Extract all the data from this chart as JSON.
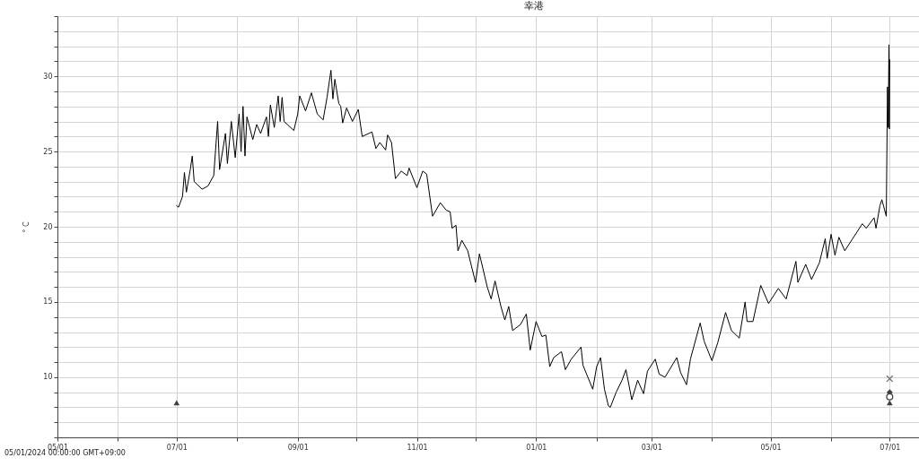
{
  "chart_data": {
    "type": "line",
    "title": "幸港",
    "ylabel": "° C",
    "annotations": [
      "05/01/2024 00:00:00 GMT+09:00"
    ],
    "xlim": [
      "2024-05-01",
      "2025-07-16"
    ],
    "ylim": [
      6,
      34
    ],
    "xticks": [
      {
        "value": "2024-05-01",
        "label": "05/01"
      },
      {
        "value": "2024-06-01",
        "label": null
      },
      {
        "value": "2024-07-01",
        "label": "07/01"
      },
      {
        "value": "2024-08-01",
        "label": null
      },
      {
        "value": "2024-09-01",
        "label": "09/01"
      },
      {
        "value": "2024-10-01",
        "label": null
      },
      {
        "value": "2024-11-01",
        "label": "11/01"
      },
      {
        "value": "2024-12-01",
        "label": null
      },
      {
        "value": "2025-01-01",
        "label": "01/01"
      },
      {
        "value": "2025-02-01",
        "label": null
      },
      {
        "value": "2025-03-01",
        "label": "03/01"
      },
      {
        "value": "2025-04-01",
        "label": null
      },
      {
        "value": "2025-05-01",
        "label": "05/01"
      },
      {
        "value": "2025-06-01",
        "label": null
      },
      {
        "value": "2025-07-01",
        "label": "07/01"
      }
    ],
    "yticks": [
      {
        "value": 6,
        "label": null
      },
      {
        "value": 7,
        "label": null
      },
      {
        "value": 8,
        "label": null
      },
      {
        "value": 9,
        "label": null
      },
      10,
      {
        "value": 11,
        "label": null
      },
      {
        "value": 12,
        "label": null
      },
      {
        "value": 13,
        "label": null
      },
      {
        "value": 14,
        "label": null
      },
      15,
      {
        "value": 16,
        "label": null
      },
      {
        "value": 17,
        "label": null
      },
      {
        "value": 18,
        "label": null
      },
      {
        "value": 19,
        "label": null
      },
      20,
      {
        "value": 21,
        "label": null
      },
      {
        "value": 22,
        "label": null
      },
      {
        "value": 23,
        "label": null
      },
      {
        "value": 24,
        "label": null
      },
      25,
      {
        "value": 26,
        "label": null
      },
      {
        "value": 27,
        "label": null
      },
      {
        "value": 28,
        "label": null
      },
      {
        "value": 29,
        "label": null
      },
      30,
      {
        "value": 31,
        "label": null
      },
      {
        "value": 32,
        "label": null
      },
      {
        "value": 33,
        "label": null
      },
      {
        "value": 34,
        "label": null
      }
    ],
    "grid": true,
    "series": [
      {
        "color": "#000000",
        "x": [
          "2024-07-01",
          "2024-07-02",
          "2024-07-04",
          "2024-07-05",
          "2024-07-06",
          "2024-07-08",
          "2024-07-09",
          "2024-07-10",
          "2024-07-14",
          "2024-07-17",
          "2024-07-20",
          "2024-07-22",
          "2024-07-23",
          "2024-07-26",
          "2024-07-27",
          "2024-07-29",
          "2024-07-31",
          "2024-08-02",
          "2024-08-03",
          "2024-08-04",
          "2024-08-05",
          "2024-08-06",
          "2024-08-09",
          "2024-08-11",
          "2024-08-13",
          "2024-08-16",
          "2024-08-17",
          "2024-08-18",
          "2024-08-20",
          "2024-08-22",
          "2024-08-23",
          "2024-08-24",
          "2024-08-25",
          "2024-08-30",
          "2024-09-01",
          "2024-09-02",
          "2024-09-05",
          "2024-09-08",
          "2024-09-11",
          "2024-09-14",
          "2024-09-16",
          "2024-09-18",
          "2024-09-19",
          "2024-09-20",
          "2024-09-22",
          "2024-09-23",
          "2024-09-24",
          "2024-09-26",
          "2024-09-29",
          "2024-10-02",
          "2024-10-04",
          "2024-10-09",
          "2024-10-11",
          "2024-10-13",
          "2024-10-16",
          "2024-10-17",
          "2024-10-19",
          "2024-10-21",
          "2024-10-24",
          "2024-10-27",
          "2024-10-28",
          "2024-11-01",
          "2024-11-04",
          "2024-11-06",
          "2024-11-09",
          "2024-11-13",
          "2024-11-16",
          "2024-11-18",
          "2024-11-19",
          "2024-11-21",
          "2024-11-22",
          "2024-11-24",
          "2024-11-27",
          "2024-12-01",
          "2024-12-03",
          "2024-12-07",
          "2024-12-09",
          "2024-12-11",
          "2024-12-14",
          "2024-12-16",
          "2024-12-18",
          "2024-12-20",
          "2024-12-24",
          "2024-12-27",
          "2024-12-29",
          "2025-01-01",
          "2025-01-04",
          "2025-01-06",
          "2025-01-08",
          "2025-01-10",
          "2025-01-14",
          "2025-01-16",
          "2025-01-19",
          "2025-01-24",
          "2025-01-25",
          "2025-01-30",
          "2025-02-01",
          "2025-02-03",
          "2025-02-05",
          "2025-02-07",
          "2025-02-08",
          "2025-02-11",
          "2025-02-14",
          "2025-02-16",
          "2025-02-19",
          "2025-02-22",
          "2025-02-25",
          "2025-02-27",
          "2025-03-03",
          "2025-03-05",
          "2025-03-08",
          "2025-03-14",
          "2025-03-16",
          "2025-03-19",
          "2025-03-21",
          "2025-03-26",
          "2025-03-28",
          "2025-04-01",
          "2025-04-04",
          "2025-04-08",
          "2025-04-11",
          "2025-04-15",
          "2025-04-18",
          "2025-04-19",
          "2025-04-22",
          "2025-04-26",
          "2025-04-30",
          "2025-05-05",
          "2025-05-09",
          "2025-05-14",
          "2025-05-15",
          "2025-05-19",
          "2025-05-22",
          "2025-05-26",
          "2025-05-29",
          "2025-05-30",
          "2025-06-01",
          "2025-06-03",
          "2025-06-05",
          "2025-06-08",
          "2025-06-12",
          "2025-06-17",
          "2025-06-19",
          "2025-06-23",
          "2025-06-24",
          "2025-06-26",
          "2025-06-27",
          "2025-06-29T06:00",
          "2025-06-29T21:00",
          "2025-06-30T06:00",
          "2025-06-30T15:00",
          "2025-06-30T20:00",
          "2025-07-01T00:00"
        ],
        "values": [
          21.4,
          21.3,
          22.0,
          23.6,
          22.3,
          23.8,
          24.7,
          23.0,
          22.5,
          22.7,
          23.4,
          27.0,
          23.8,
          26.2,
          24.2,
          27.0,
          24.6,
          27.5,
          25.0,
          28.0,
          24.7,
          27.3,
          25.8,
          26.8,
          26.2,
          27.3,
          26.0,
          28.1,
          26.6,
          28.7,
          27.0,
          28.6,
          27.0,
          26.4,
          27.5,
          28.7,
          27.7,
          28.9,
          27.5,
          27.1,
          28.6,
          30.4,
          28.5,
          29.8,
          28.2,
          28.0,
          26.9,
          27.9,
          27.0,
          27.8,
          26.0,
          26.3,
          25.2,
          25.6,
          25.1,
          26.1,
          25.6,
          23.2,
          23.7,
          23.4,
          23.9,
          22.6,
          23.7,
          23.5,
          20.7,
          21.6,
          21.1,
          21.0,
          19.9,
          20.1,
          18.4,
          19.1,
          18.4,
          16.3,
          18.2,
          16.0,
          15.2,
          16.4,
          14.7,
          13.8,
          14.7,
          13.1,
          13.5,
          14.2,
          11.8,
          13.7,
          12.7,
          12.8,
          10.7,
          11.3,
          11.7,
          10.5,
          11.2,
          12.0,
          10.8,
          9.2,
          10.7,
          11.3,
          9.2,
          8.1,
          8.0,
          9.0,
          9.8,
          10.5,
          8.5,
          9.8,
          8.9,
          10.4,
          11.2,
          10.2,
          10.0,
          11.3,
          10.3,
          9.5,
          11.2,
          13.6,
          12.4,
          11.1,
          12.3,
          14.3,
          13.1,
          12.6,
          15.0,
          13.7,
          13.7,
          16.1,
          14.9,
          15.9,
          15.2,
          17.7,
          16.3,
          17.5,
          16.5,
          17.6,
          19.2,
          17.9,
          19.5,
          18.1,
          19.3,
          18.4,
          19.2,
          20.2,
          19.9,
          20.6,
          19.9,
          21.4,
          21.8,
          20.7,
          29.3,
          26.6,
          32.1,
          26.5,
          31.1
        ]
      },
      {
        "type": "scatter",
        "marker": "triangle",
        "color": "#404040",
        "x": [
          "2024-07-01",
          "2025-07-01"
        ],
        "values": [
          8.3,
          8.3
        ]
      },
      {
        "type": "scatter",
        "marker": "cross",
        "color": "#707070",
        "x": [
          "2025-07-01"
        ],
        "values": [
          9.9
        ]
      },
      {
        "type": "scatter",
        "marker": "diamond",
        "color": "#404040",
        "x": [
          "2025-07-01"
        ],
        "values": [
          9.0
        ]
      },
      {
        "type": "scatter",
        "marker": "circle",
        "color": "#404040",
        "x": [
          "2025-07-01"
        ],
        "values": [
          8.7
        ]
      }
    ]
  }
}
